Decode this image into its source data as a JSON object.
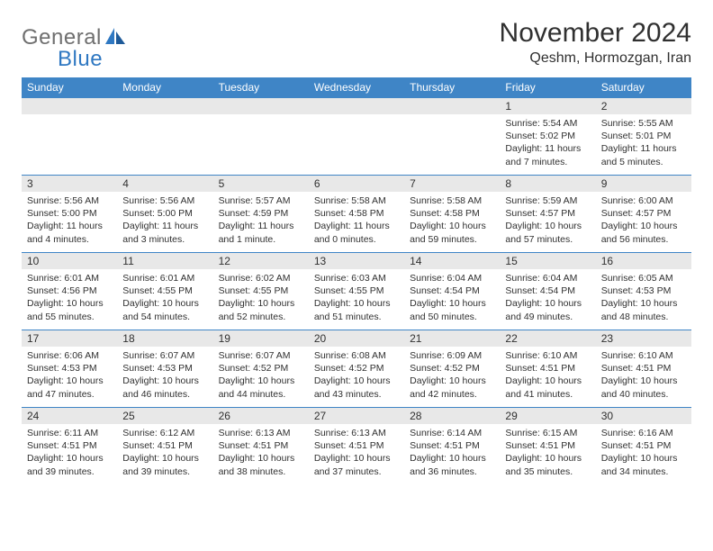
{
  "logo": {
    "word1": "General",
    "word2": "Blue"
  },
  "title": "November 2024",
  "location": "Qeshm, Hormozgan, Iran",
  "colors": {
    "header_bg": "#3f85c6",
    "header_text": "#ffffff",
    "daynum_bg": "#e8e8e8",
    "text": "#303030",
    "logo_gray": "#6f6f6f",
    "logo_blue": "#2f78c2",
    "rule": "#3f85c6",
    "page_bg": "#ffffff"
  },
  "typography": {
    "title_fontsize": 30,
    "location_fontsize": 16,
    "dow_fontsize": 12,
    "daynum_fontsize": 12,
    "body_fontsize": 10.5,
    "font_family": "Arial"
  },
  "dow": [
    "Sunday",
    "Monday",
    "Tuesday",
    "Wednesday",
    "Thursday",
    "Friday",
    "Saturday"
  ],
  "weeks": [
    [
      null,
      null,
      null,
      null,
      null,
      {
        "n": "1",
        "sr": "5:54 AM",
        "ss": "5:02 PM",
        "dl": "11 hours and 7 minutes."
      },
      {
        "n": "2",
        "sr": "5:55 AM",
        "ss": "5:01 PM",
        "dl": "11 hours and 5 minutes."
      }
    ],
    [
      {
        "n": "3",
        "sr": "5:56 AM",
        "ss": "5:00 PM",
        "dl": "11 hours and 4 minutes."
      },
      {
        "n": "4",
        "sr": "5:56 AM",
        "ss": "5:00 PM",
        "dl": "11 hours and 3 minutes."
      },
      {
        "n": "5",
        "sr": "5:57 AM",
        "ss": "4:59 PM",
        "dl": "11 hours and 1 minute."
      },
      {
        "n": "6",
        "sr": "5:58 AM",
        "ss": "4:58 PM",
        "dl": "11 hours and 0 minutes."
      },
      {
        "n": "7",
        "sr": "5:58 AM",
        "ss": "4:58 PM",
        "dl": "10 hours and 59 minutes."
      },
      {
        "n": "8",
        "sr": "5:59 AM",
        "ss": "4:57 PM",
        "dl": "10 hours and 57 minutes."
      },
      {
        "n": "9",
        "sr": "6:00 AM",
        "ss": "4:57 PM",
        "dl": "10 hours and 56 minutes."
      }
    ],
    [
      {
        "n": "10",
        "sr": "6:01 AM",
        "ss": "4:56 PM",
        "dl": "10 hours and 55 minutes."
      },
      {
        "n": "11",
        "sr": "6:01 AM",
        "ss": "4:55 PM",
        "dl": "10 hours and 54 minutes."
      },
      {
        "n": "12",
        "sr": "6:02 AM",
        "ss": "4:55 PM",
        "dl": "10 hours and 52 minutes."
      },
      {
        "n": "13",
        "sr": "6:03 AM",
        "ss": "4:55 PM",
        "dl": "10 hours and 51 minutes."
      },
      {
        "n": "14",
        "sr": "6:04 AM",
        "ss": "4:54 PM",
        "dl": "10 hours and 50 minutes."
      },
      {
        "n": "15",
        "sr": "6:04 AM",
        "ss": "4:54 PM",
        "dl": "10 hours and 49 minutes."
      },
      {
        "n": "16",
        "sr": "6:05 AM",
        "ss": "4:53 PM",
        "dl": "10 hours and 48 minutes."
      }
    ],
    [
      {
        "n": "17",
        "sr": "6:06 AM",
        "ss": "4:53 PM",
        "dl": "10 hours and 47 minutes."
      },
      {
        "n": "18",
        "sr": "6:07 AM",
        "ss": "4:53 PM",
        "dl": "10 hours and 46 minutes."
      },
      {
        "n": "19",
        "sr": "6:07 AM",
        "ss": "4:52 PM",
        "dl": "10 hours and 44 minutes."
      },
      {
        "n": "20",
        "sr": "6:08 AM",
        "ss": "4:52 PM",
        "dl": "10 hours and 43 minutes."
      },
      {
        "n": "21",
        "sr": "6:09 AM",
        "ss": "4:52 PM",
        "dl": "10 hours and 42 minutes."
      },
      {
        "n": "22",
        "sr": "6:10 AM",
        "ss": "4:51 PM",
        "dl": "10 hours and 41 minutes."
      },
      {
        "n": "23",
        "sr": "6:10 AM",
        "ss": "4:51 PM",
        "dl": "10 hours and 40 minutes."
      }
    ],
    [
      {
        "n": "24",
        "sr": "6:11 AM",
        "ss": "4:51 PM",
        "dl": "10 hours and 39 minutes."
      },
      {
        "n": "25",
        "sr": "6:12 AM",
        "ss": "4:51 PM",
        "dl": "10 hours and 39 minutes."
      },
      {
        "n": "26",
        "sr": "6:13 AM",
        "ss": "4:51 PM",
        "dl": "10 hours and 38 minutes."
      },
      {
        "n": "27",
        "sr": "6:13 AM",
        "ss": "4:51 PM",
        "dl": "10 hours and 37 minutes."
      },
      {
        "n": "28",
        "sr": "6:14 AM",
        "ss": "4:51 PM",
        "dl": "10 hours and 36 minutes."
      },
      {
        "n": "29",
        "sr": "6:15 AM",
        "ss": "4:51 PM",
        "dl": "10 hours and 35 minutes."
      },
      {
        "n": "30",
        "sr": "6:16 AM",
        "ss": "4:51 PM",
        "dl": "10 hours and 34 minutes."
      }
    ]
  ],
  "labels": {
    "sunrise": "Sunrise:",
    "sunset": "Sunset:",
    "daylight": "Daylight:"
  }
}
